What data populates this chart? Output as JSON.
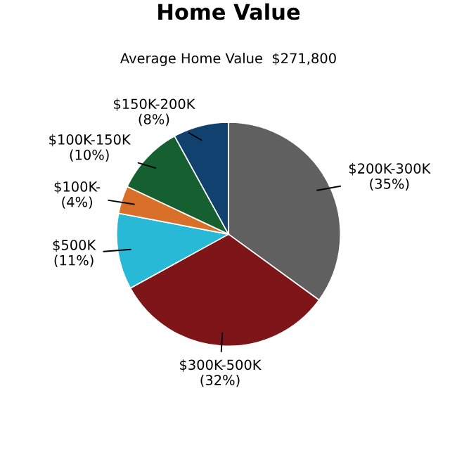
{
  "chart_data": {
    "type": "pie",
    "title": "Home Value",
    "subtitle": "Average Home Value  $271,800",
    "categories": [
      "$200K-300K",
      "$300K-500K",
      "$500K",
      "$100K-",
      "$100K-150K",
      "$150K-200K"
    ],
    "values": [
      35,
      32,
      11,
      4,
      10,
      8
    ],
    "value_labels": [
      "(35%)",
      "(32%)",
      "(11%)",
      "(4%)",
      "(10%)",
      "(8%)"
    ],
    "colors": [
      "#606060",
      "#7e1518",
      "#27b9d6",
      "#d9702a",
      "#165f30",
      "#11416e"
    ],
    "legend": false
  }
}
